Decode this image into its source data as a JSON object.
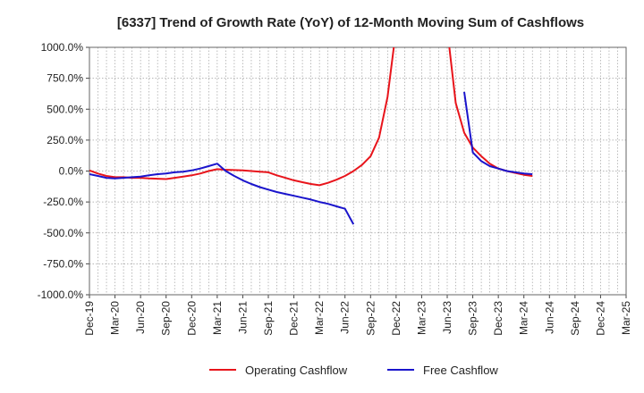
{
  "chart_data": {
    "type": "line",
    "title": "[6337]  Trend of Growth Rate (YoY) of 12-Month Moving Sum of Cashflows",
    "xlabel": "",
    "ylabel": "",
    "ylim": [
      -1000,
      1000
    ],
    "y_ticks": [
      "1000.0%",
      "750.0%",
      "500.0%",
      "250.0%",
      "0.0%",
      "-250.0%",
      "-500.0%",
      "-750.0%",
      "-1000.0%"
    ],
    "x_ticks": [
      "Dec-19",
      "Mar-20",
      "Jun-20",
      "Sep-20",
      "Dec-20",
      "Mar-21",
      "Jun-21",
      "Sep-21",
      "Dec-21",
      "Mar-22",
      "Jun-22",
      "Sep-22",
      "Dec-22",
      "Mar-23",
      "Jun-23",
      "Sep-23",
      "Dec-23",
      "Mar-24",
      "Jun-24",
      "Sep-24",
      "Dec-24",
      "Mar-25"
    ],
    "x_range": [
      "Dec-19",
      "Mar-25"
    ],
    "grid": true,
    "legend_position": "bottom",
    "series": [
      {
        "name": "Operating Cashflow",
        "color": "#e8141b",
        "points": [
          [
            "Dec-19",
            5
          ],
          [
            "Jan-20",
            -20
          ],
          [
            "Feb-20",
            -40
          ],
          [
            "Mar-20",
            -50
          ],
          [
            "Apr-20",
            -50
          ],
          [
            "May-20",
            -55
          ],
          [
            "Jun-20",
            -55
          ],
          [
            "Jul-20",
            -60
          ],
          [
            "Aug-20",
            -62
          ],
          [
            "Sep-20",
            -65
          ],
          [
            "Oct-20",
            -55
          ],
          [
            "Nov-20",
            -45
          ],
          [
            "Dec-20",
            -35
          ],
          [
            "Jan-21",
            -20
          ],
          [
            "Feb-21",
            0
          ],
          [
            "Mar-21",
            15
          ],
          [
            "Apr-21",
            10
          ],
          [
            "May-21",
            8
          ],
          [
            "Jun-21",
            5
          ],
          [
            "Jul-21",
            0
          ],
          [
            "Aug-21",
            -5
          ],
          [
            "Sep-21",
            -10
          ],
          [
            "Oct-21",
            -35
          ],
          [
            "Nov-21",
            -55
          ],
          [
            "Dec-21",
            -75
          ],
          [
            "Jan-22",
            -90
          ],
          [
            "Feb-22",
            -105
          ],
          [
            "Mar-22",
            -115
          ],
          [
            "Apr-22",
            -95
          ],
          [
            "May-22",
            -70
          ],
          [
            "Jun-22",
            -40
          ],
          [
            "Jul-22",
            0
          ],
          [
            "Aug-22",
            50
          ],
          [
            "Sep-22",
            120
          ],
          [
            "Oct-22",
            270
          ],
          [
            "Nov-22",
            600
          ],
          [
            "Dec-22",
            1150
          ],
          null,
          [
            "Jun-23",
            1150
          ],
          [
            "Jul-23",
            550
          ],
          [
            "Aug-23",
            310
          ],
          [
            "Sep-23",
            190
          ],
          [
            "Oct-23",
            120
          ],
          [
            "Nov-23",
            60
          ],
          [
            "Dec-23",
            20
          ],
          [
            "Jan-24",
            0
          ],
          [
            "Feb-24",
            -15
          ],
          [
            "Mar-24",
            -30
          ],
          [
            "Apr-24",
            -40
          ]
        ]
      },
      {
        "name": "Free Cashflow",
        "color": "#1a14cc",
        "points": [
          [
            "Dec-19",
            -25
          ],
          [
            "Jan-20",
            -40
          ],
          [
            "Feb-20",
            -55
          ],
          [
            "Mar-20",
            -60
          ],
          [
            "Apr-20",
            -55
          ],
          [
            "May-20",
            -50
          ],
          [
            "Jun-20",
            -45
          ],
          [
            "Jul-20",
            -35
          ],
          [
            "Aug-20",
            -25
          ],
          [
            "Sep-20",
            -20
          ],
          [
            "Oct-20",
            -10
          ],
          [
            "Nov-20",
            -5
          ],
          [
            "Dec-20",
            5
          ],
          [
            "Jan-21",
            20
          ],
          [
            "Feb-21",
            40
          ],
          [
            "Mar-21",
            60
          ],
          [
            "Apr-21",
            0
          ],
          [
            "May-21",
            -40
          ],
          [
            "Jun-21",
            -75
          ],
          [
            "Jul-21",
            -105
          ],
          [
            "Aug-21",
            -130
          ],
          [
            "Sep-21",
            -150
          ],
          [
            "Oct-21",
            -170
          ],
          [
            "Nov-21",
            -185
          ],
          [
            "Dec-21",
            -200
          ],
          [
            "Jan-22",
            -215
          ],
          [
            "Feb-22",
            -230
          ],
          [
            "Mar-22",
            -250
          ],
          [
            "Apr-22",
            -265
          ],
          [
            "May-22",
            -285
          ],
          [
            "Jun-22",
            -305
          ],
          [
            "Jul-22",
            -430
          ],
          null,
          [
            "Aug-23",
            640
          ],
          [
            "Sep-23",
            150
          ],
          [
            "Oct-23",
            80
          ],
          [
            "Nov-23",
            40
          ],
          [
            "Dec-23",
            20
          ],
          [
            "Jan-24",
            0
          ],
          [
            "Feb-24",
            -10
          ],
          [
            "Mar-24",
            -20
          ],
          [
            "Apr-24",
            -25
          ]
        ]
      }
    ]
  }
}
